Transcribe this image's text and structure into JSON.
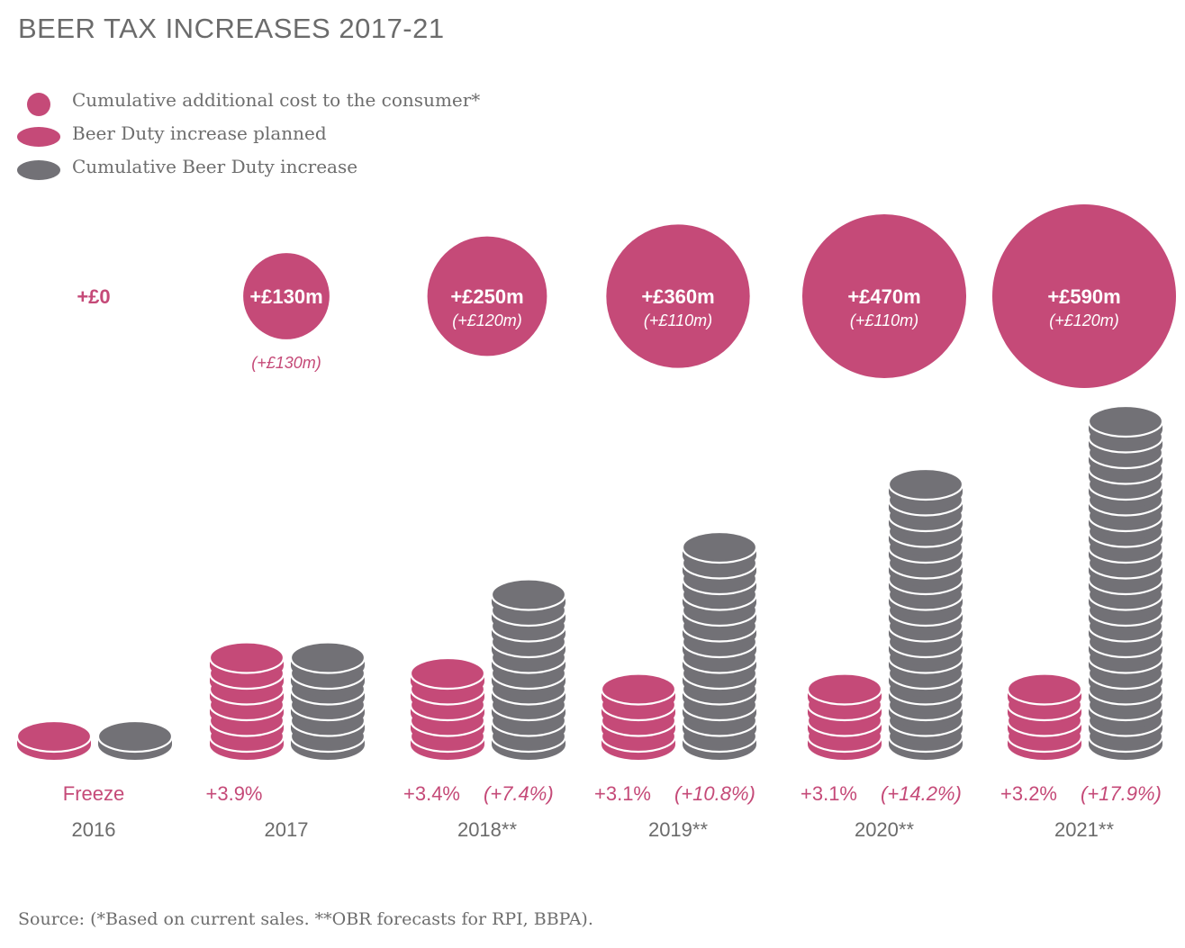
{
  "colors": {
    "pink": "#c54a78",
    "grey": "#727176",
    "text": "#6b6b6b",
    "white": "#ffffff"
  },
  "chart_data": {
    "type": "pictogram",
    "title": "BEER TAX INCREASES 2017-21",
    "legend": [
      {
        "label": "Cumulative additional cost to the consumer*",
        "symbol": "circle",
        "color": "#c54a78"
      },
      {
        "label": "Beer Duty increase planned",
        "symbol": "coin",
        "color": "#c54a78"
      },
      {
        "label": "Cumulative Beer Duty increase",
        "symbol": "coin",
        "color": "#727176"
      }
    ],
    "categories": [
      "2016",
      "2017",
      "2018**",
      "2019**",
      "2020**",
      "2021**"
    ],
    "series": [
      {
        "name": "Cumulative additional cost to the consumer*",
        "values": [
          0,
          130,
          250,
          360,
          470,
          590
        ],
        "labels": [
          "+£0",
          "+£130m",
          "+£250m",
          "+£360m",
          "+£470m",
          "+£590m"
        ],
        "sublabels": [
          "",
          "(+£130m)",
          "(+£120m)",
          "(+£110m)",
          "(+£110m)",
          "(+£120m)"
        ]
      },
      {
        "name": "Beer Duty increase planned",
        "values": [
          0,
          3.9,
          3.4,
          3.1,
          3.1,
          3.2
        ],
        "labels": [
          "Freeze",
          "+3.9%",
          "+3.4%",
          "+3.1%",
          "+3.1%",
          "+3.2%"
        ],
        "coins": [
          1,
          6,
          5,
          4,
          4,
          4
        ]
      },
      {
        "name": "Cumulative Beer Duty increase",
        "values": [
          0,
          3.9,
          7.4,
          10.8,
          14.2,
          17.9
        ],
        "labels": [
          "",
          "",
          "(+7.4%)",
          "(+10.8%)",
          "(+14.2%)",
          "(+17.9%)"
        ],
        "coins": [
          1,
          6,
          10,
          13,
          17,
          21
        ]
      }
    ],
    "source": "Source: (*Based on current sales. **OBR forecasts for RPI, BBPA)."
  }
}
